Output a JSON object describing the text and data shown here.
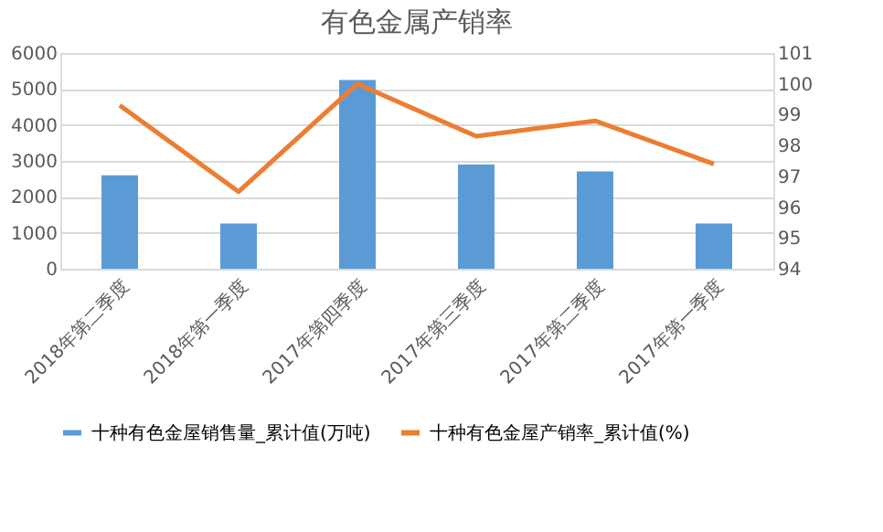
{
  "chart_data": {
    "type": "bar",
    "title": "有色金属产销率",
    "categories": [
      "2018年第二季度",
      "2018年第一季度",
      "2017年第四季度",
      "2017年第三季度",
      "2017年第二季度",
      "2017年第一季度"
    ],
    "series": [
      {
        "name": "十种有色金屋销售量_累计值(万吨)",
        "color": "#5b9bd5",
        "values": [
          2600,
          1260,
          5250,
          2900,
          2710,
          1260
        ]
      },
      {
        "name": "十种有色金屋产销率_累计值(%)",
        "type": "line",
        "axis": "y2",
        "color": "#ed7d31",
        "values": [
          99.3,
          96.5,
          100.0,
          98.3,
          98.8,
          97.4
        ]
      }
    ],
    "ylim": [
      0,
      6000
    ],
    "yticks": [
      0,
      1000,
      2000,
      3000,
      4000,
      5000,
      6000
    ],
    "y2lim": [
      94,
      101
    ],
    "y2ticks": [
      94,
      95,
      96,
      97,
      98,
      99,
      100,
      101
    ],
    "grid": "y",
    "legend": "bottom"
  }
}
